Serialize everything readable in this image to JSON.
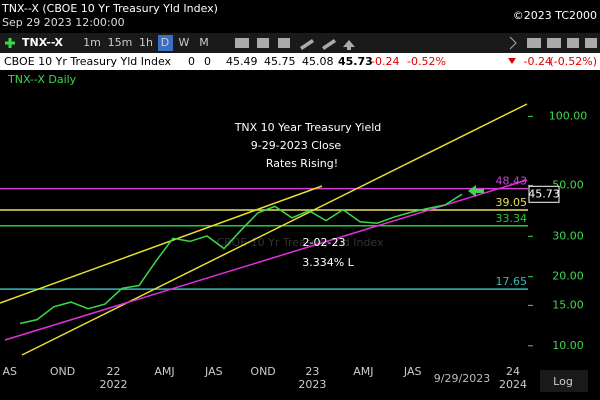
{
  "header": {
    "title": "TNX--X (CBOE 10 Yr Treasury Yld Index)",
    "datetime": "Sep 29 2023 12:00:00",
    "copyright": "©2023 TC2000"
  },
  "toolbar": {
    "symbol": "TNX--X",
    "timeframes": [
      "1m",
      "15m",
      "1h",
      "D",
      "W",
      "M"
    ]
  },
  "quote": {
    "name": "CBOE 10 Yr Treasury Yld Index",
    "fields": [
      "0",
      "0",
      "45.49",
      "45.75",
      "45.08",
      "45.73"
    ],
    "change": "-0.24",
    "change_pct": "-0.52%",
    "right_change": "-0.24",
    "right_change_pct": "(-0.52%)"
  },
  "chart_data": {
    "type": "line",
    "log_scale": true,
    "watermark": "CBOE 10 Yr Treasury Yld Index",
    "annotations": [
      "TNX 10 Year Treasury Yield",
      "9-29-2023 Close",
      "Rates Rising!",
      "2-02-23",
      "3.334% L"
    ],
    "categories": [
      null,
      null,
      null,
      null,
      null,
      null,
      null,
      null,
      null,
      null,
      null,
      null,
      null,
      null,
      null,
      null,
      null,
      null,
      null,
      null,
      null,
      null,
      null,
      null,
      null,
      null,
      null
    ],
    "series": [
      {
        "name": "TNX--X Daily",
        "color": "#3cd84a",
        "values": [
          12.5,
          13,
          14.8,
          15.5,
          14.5,
          15.2,
          17.8,
          18.3,
          23.4,
          29.4,
          28.5,
          30.1,
          26.5,
          31.9,
          38.0,
          40.5,
          36.1,
          38.8,
          35.1,
          39.2,
          34.7,
          34.2,
          36.4,
          38.2,
          39.7,
          41.1,
          45.73
        ]
      }
    ],
    "xlim": [
      -1.2,
      29.9
    ],
    "xticks": [
      {
        "value": -0.6,
        "label": "AS"
      },
      {
        "value": 2.5,
        "label": "OND"
      },
      {
        "value": 5.5,
        "label": "22"
      },
      {
        "value": 8.5,
        "label": "AMJ"
      },
      {
        "value": 11.4,
        "label": "JAS"
      },
      {
        "value": 14.3,
        "label": "OND"
      },
      {
        "value": 17.2,
        "label": "23"
      },
      {
        "value": 20.2,
        "label": "AMJ"
      },
      {
        "value": 23.1,
        "label": "JAS"
      },
      {
        "value": 29,
        "label": "24"
      }
    ],
    "year_labels": [
      {
        "value": 5.5,
        "label": "2022"
      },
      {
        "value": 17.2,
        "label": "2023"
      },
      {
        "value": 29,
        "label": "2024"
      }
    ],
    "last_date": {
      "value": 26,
      "label": "9/29/2023"
    },
    "ylim": [
      8,
      144
    ],
    "yticks": [
      {
        "value": 10,
        "label": "10.00"
      },
      {
        "value": 15,
        "label": "15.00"
      },
      {
        "value": 20,
        "label": "20.00"
      },
      {
        "value": 30,
        "label": "30.00"
      },
      {
        "value": 50,
        "label": "50.00"
      },
      {
        "value": 100,
        "label": "100.00"
      }
    ],
    "levels": [
      {
        "value": 48.43,
        "color": "#d040d0"
      },
      {
        "value": 39.05,
        "color": "#e8e060"
      },
      {
        "value": 33.34,
        "color": "#22cc33"
      },
      {
        "value": 17.65,
        "color": "#33bbbb"
      }
    ],
    "scale_button": "Log"
  }
}
